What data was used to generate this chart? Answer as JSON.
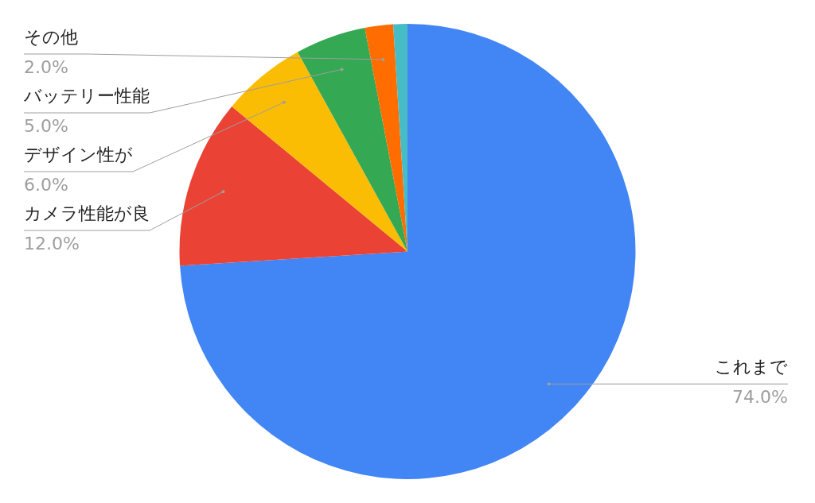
{
  "chart_data": {
    "type": "pie",
    "categories": [
      "これまで",
      "カメラ性能が良",
      "デザイン性が",
      "バッテリー性能",
      "その他",
      null
    ],
    "values": [
      74,
      12,
      6,
      5,
      2,
      1
    ],
    "colors": [
      "#4285f4",
      "#ea4335",
      "#fbbc04",
      "#34a853",
      "#ff6d01",
      "#46bdc6"
    ],
    "value_labels": [
      "74.0%",
      "12.0%",
      "6.0%",
      "5.0%",
      "2.0%",
      null
    ],
    "legend": false
  }
}
